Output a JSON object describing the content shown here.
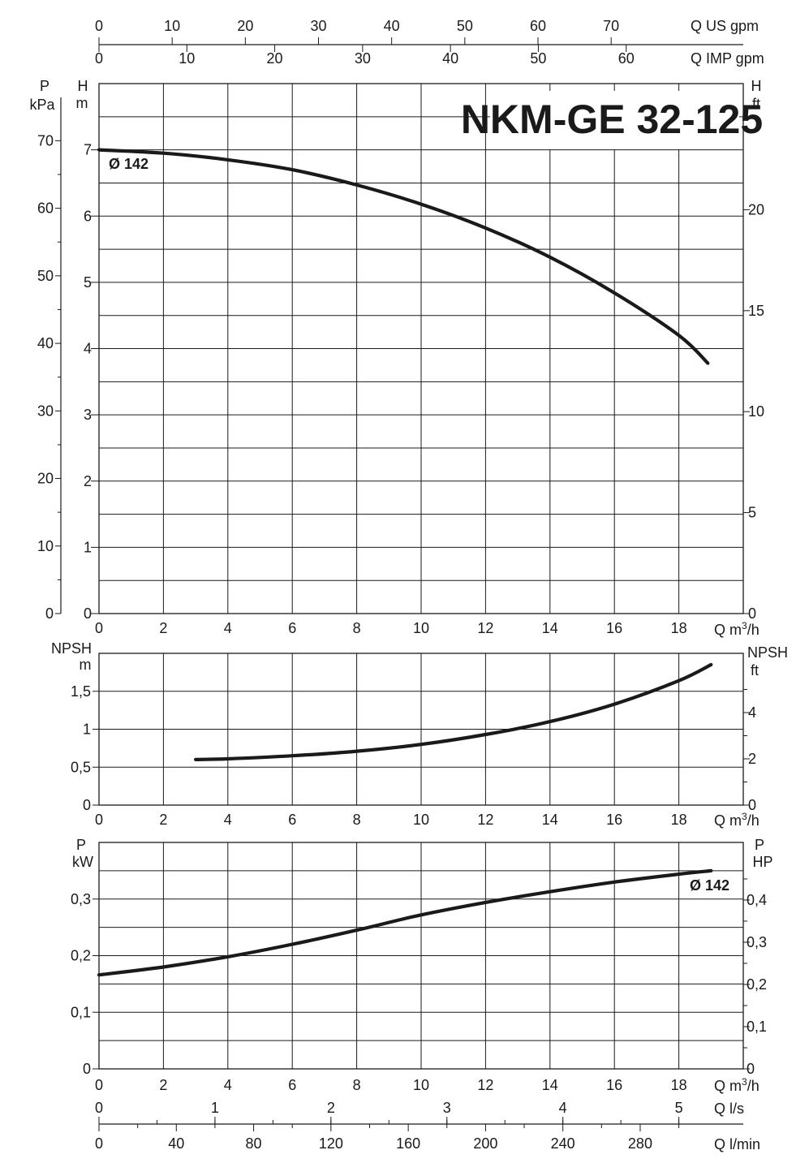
{
  "title": "NKM-GE 32-125",
  "top_axes": {
    "us_gpm": {
      "label": "Q US gpm",
      "ticks": [
        "0",
        "10",
        "20",
        "30",
        "40",
        "50",
        "60",
        "70"
      ]
    },
    "imp_gpm": {
      "label": "Q IMP gpm",
      "ticks": [
        "0",
        "10",
        "20",
        "30",
        "40",
        "50",
        "60"
      ]
    }
  },
  "bottom_axes": {
    "ls": {
      "label": "Q l/s",
      "ticks": [
        "0",
        "1",
        "2",
        "3",
        "4",
        "5"
      ]
    },
    "lmin": {
      "label": "Q l/min",
      "ticks": [
        "0",
        "40",
        "80",
        "120",
        "160",
        "200",
        "240",
        "280"
      ]
    }
  },
  "x_axis": {
    "label": "Q m³/h",
    "ticks": [
      "0",
      "2",
      "4",
      "6",
      "8",
      "10",
      "12",
      "14",
      "16",
      "18"
    ]
  },
  "panels": {
    "head": {
      "left_outer_label": [
        "P",
        "kPa"
      ],
      "left_outer_ticks": [
        "0",
        "10",
        "20",
        "30",
        "40",
        "50",
        "60",
        "70"
      ],
      "left_label": [
        "H",
        "m"
      ],
      "left_ticks": [
        "0",
        "1",
        "2",
        "3",
        "4",
        "5",
        "6",
        "7"
      ],
      "right_label": [
        "H",
        "ft"
      ],
      "right_ticks": [
        "0",
        "5",
        "10",
        "15",
        "20"
      ],
      "curve_label": "Ø 142"
    },
    "npsh": {
      "left_label": [
        "NPSH",
        "m"
      ],
      "left_ticks": [
        "0",
        "0,5",
        "1",
        "1,5"
      ],
      "right_label": [
        "NPSH",
        "ft"
      ],
      "right_ticks": [
        "0",
        "2",
        "4"
      ]
    },
    "power": {
      "left_label": [
        "P",
        "kW"
      ],
      "left_ticks": [
        "0",
        "0,1",
        "0,2",
        "0,3"
      ],
      "right_label": [
        "P",
        "HP"
      ],
      "right_ticks": [
        "0",
        "0,1",
        "0,2",
        "0,3",
        "0,4"
      ],
      "curve_label": "Ø 142"
    }
  },
  "chart_data": [
    {
      "type": "line",
      "title": "NKM-GE 32-125",
      "xlabel": "Q m³/h",
      "ylabel": "H m",
      "xlim": [
        0,
        20
      ],
      "ylim": [
        0,
        8
      ],
      "series": [
        {
          "name": "Ø 142",
          "x": [
            0,
            2,
            4,
            6,
            8,
            10,
            12,
            14,
            16,
            18,
            18.9
          ],
          "y": [
            7.0,
            6.95,
            6.85,
            6.7,
            6.47,
            6.18,
            5.82,
            5.38,
            4.84,
            4.2,
            3.78
          ]
        }
      ]
    },
    {
      "type": "line",
      "xlabel": "Q m³/h",
      "ylabel": "NPSH m",
      "xlim": [
        0,
        20
      ],
      "ylim": [
        0,
        2
      ],
      "series": [
        {
          "x": [
            3,
            4,
            6,
            8,
            10,
            12,
            14,
            16,
            18,
            19
          ],
          "y": [
            0.6,
            0.61,
            0.65,
            0.71,
            0.8,
            0.93,
            1.1,
            1.33,
            1.64,
            1.85
          ]
        }
      ]
    },
    {
      "type": "line",
      "xlabel": "Q m³/h",
      "ylabel": "P kW",
      "xlim": [
        0,
        20
      ],
      "ylim": [
        0,
        0.4
      ],
      "series": [
        {
          "name": "Ø 142",
          "x": [
            0,
            2,
            4,
            6,
            8,
            10,
            12,
            14,
            16,
            18,
            19
          ],
          "y": [
            0.166,
            0.18,
            0.198,
            0.22,
            0.245,
            0.272,
            0.294,
            0.313,
            0.33,
            0.344,
            0.35
          ]
        }
      ]
    }
  ]
}
